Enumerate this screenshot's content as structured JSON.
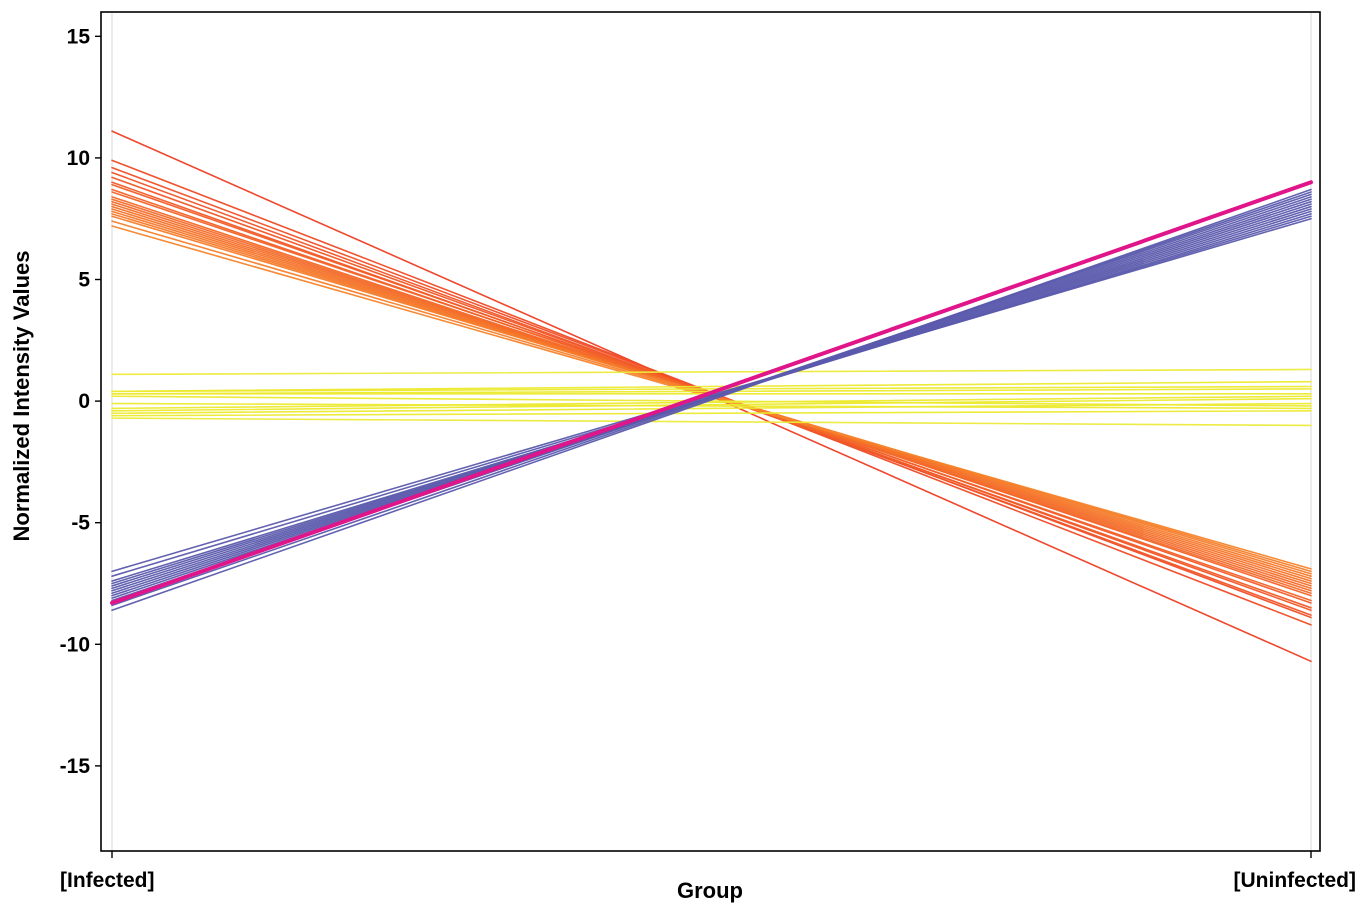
{
  "chart_data": {
    "type": "line",
    "xlabel": "Group",
    "ylabel": "Normalized Intensity Values",
    "categories": [
      "[Infected]",
      "[Uninfected]"
    ],
    "ylim": [
      -18.5,
      16
    ],
    "yticks": [
      -15,
      -10,
      -5,
      0,
      5,
      10,
      15
    ],
    "grid": false,
    "legend": "none",
    "colors": {
      "down": "#f25a28",
      "down_light": "#f5832a",
      "flat": "#ecec2a",
      "up": "#5b5aad",
      "highlight": "#e0158a"
    },
    "series": [
      {
        "values": [
          11.1,
          -10.7
        ],
        "color": "#ee3d22"
      },
      {
        "values": [
          9.9,
          -9.2
        ],
        "color": "#ee4a24"
      },
      {
        "values": [
          9.6,
          -8.9
        ],
        "color": "#f04f26"
      },
      {
        "values": [
          9.4,
          -8.8
        ],
        "color": "#f05326"
      },
      {
        "values": [
          9.2,
          -8.6
        ],
        "color": "#f15626"
      },
      {
        "values": [
          9.0,
          -8.5
        ],
        "color": "#f15a27"
      },
      {
        "values": [
          8.9,
          -8.3
        ],
        "color": "#f25c27"
      },
      {
        "values": [
          8.7,
          -8.2
        ],
        "color": "#f26028"
      },
      {
        "values": [
          8.6,
          -8.0
        ],
        "color": "#f26428"
      },
      {
        "values": [
          8.4,
          -7.9
        ],
        "color": "#f36828"
      },
      {
        "values": [
          8.3,
          -7.8
        ],
        "color": "#f36a29"
      },
      {
        "values": [
          8.2,
          -7.7
        ],
        "color": "#f36c29"
      },
      {
        "values": [
          8.1,
          -7.6
        ],
        "color": "#f46f29"
      },
      {
        "values": [
          8.0,
          -7.5
        ],
        "color": "#f4722a"
      },
      {
        "values": [
          7.9,
          -7.4
        ],
        "color": "#f4742a"
      },
      {
        "values": [
          7.8,
          -7.3
        ],
        "color": "#f5772a"
      },
      {
        "values": [
          7.7,
          -7.2
        ],
        "color": "#f57a2a"
      },
      {
        "values": [
          7.6,
          -7.1
        ],
        "color": "#f57d2b"
      },
      {
        "values": [
          7.4,
          -7.0
        ],
        "color": "#f5802b"
      },
      {
        "values": [
          7.2,
          -6.9
        ],
        "color": "#f6842b"
      },
      {
        "values": [
          1.1,
          1.3
        ],
        "color": "#ecea3a"
      },
      {
        "values": [
          0.4,
          0.8
        ],
        "color": "#ecea2e"
      },
      {
        "values": [
          0.4,
          0.6
        ],
        "color": "#ecea2e"
      },
      {
        "values": [
          0.3,
          0.5
        ],
        "color": "#ecea2e"
      },
      {
        "values": [
          0.3,
          0.3
        ],
        "color": "#ecea2e"
      },
      {
        "values": [
          0.2,
          -0.2
        ],
        "color": "#ecea2e"
      },
      {
        "values": [
          -0.1,
          -0.3
        ],
        "color": "#ecea2e"
      },
      {
        "values": [
          -0.3,
          0.2
        ],
        "color": "#ecea2e"
      },
      {
        "values": [
          -0.4,
          0.1
        ],
        "color": "#ecea2e"
      },
      {
        "values": [
          -0.5,
          -0.1
        ],
        "color": "#ecea2e"
      },
      {
        "values": [
          -0.6,
          -0.4
        ],
        "color": "#ecea2e"
      },
      {
        "values": [
          -0.7,
          -1.0
        ],
        "color": "#ecea3a"
      },
      {
        "values": [
          -7.0,
          7.5
        ],
        "color": "#5b5aad"
      },
      {
        "values": [
          -7.2,
          7.6
        ],
        "color": "#5b5aad"
      },
      {
        "values": [
          -7.4,
          7.7
        ],
        "color": "#5b5aad"
      },
      {
        "values": [
          -7.5,
          7.8
        ],
        "color": "#5b5aad"
      },
      {
        "values": [
          -7.6,
          7.9
        ],
        "color": "#5b5aad"
      },
      {
        "values": [
          -7.7,
          8.0
        ],
        "color": "#5b5aad"
      },
      {
        "values": [
          -7.8,
          8.1
        ],
        "color": "#5b5aad"
      },
      {
        "values": [
          -7.9,
          8.2
        ],
        "color": "#5b5aad"
      },
      {
        "values": [
          -8.0,
          8.3
        ],
        "color": "#5b5aad"
      },
      {
        "values": [
          -8.1,
          8.4
        ],
        "color": "#5b5aad"
      },
      {
        "values": [
          -8.2,
          8.5
        ],
        "color": "#5b5aad"
      },
      {
        "values": [
          -8.4,
          8.6
        ],
        "color": "#5b5aad"
      },
      {
        "values": [
          -8.6,
          8.7
        ],
        "color": "#5b5aad"
      },
      {
        "values": [
          -8.3,
          9.0
        ],
        "color": "#e0158a",
        "highlight": true
      }
    ]
  }
}
